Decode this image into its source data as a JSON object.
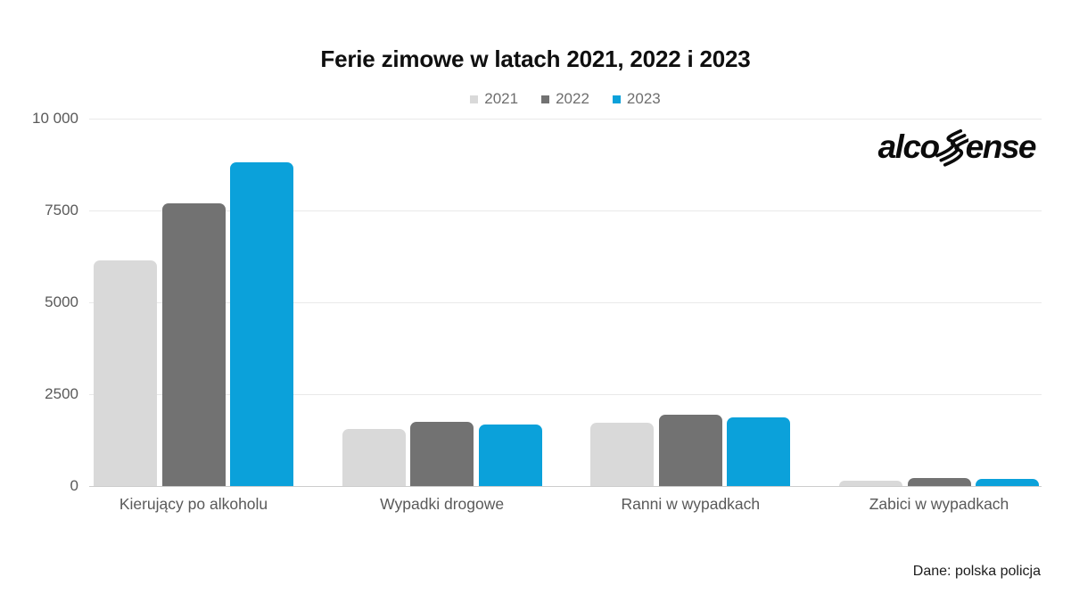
{
  "page": {
    "background": "#ffffff"
  },
  "chart_data": {
    "type": "bar",
    "title": "Ferie zimowe w latach 2021, 2022 i 2023",
    "categories": [
      "Kierujący po alkoholu",
      "Wypadki drogowe",
      "Ranni w wypadkach",
      "Zabici w wypadkach"
    ],
    "series": [
      {
        "name": "2021",
        "color": "#d9d9d9",
        "values": [
          6150,
          1550,
          1730,
          150
        ]
      },
      {
        "name": "2022",
        "color": "#727272",
        "values": [
          7700,
          1740,
          1930,
          215
        ]
      },
      {
        "name": "2023",
        "color": "#0ba1da",
        "values": [
          8800,
          1670,
          1860,
          190
        ]
      }
    ],
    "ylim": [
      0,
      10000
    ],
    "yticks": [
      {
        "label": "0",
        "value": 0
      },
      {
        "label": "2500",
        "value": 2500
      },
      {
        "label": "5000",
        "value": 5000
      },
      {
        "label": "7500",
        "value": 7500
      },
      {
        "label": "10 000",
        "value": 10000
      }
    ],
    "grid": "horizontal-lines",
    "legend_position": "top-center",
    "bar_style": "rounded-top"
  },
  "branding": {
    "logo_text": "alcosense",
    "logo_prefix": "alco",
    "logo_suffix": "ense"
  },
  "source_note": "Dane: polska policja"
}
